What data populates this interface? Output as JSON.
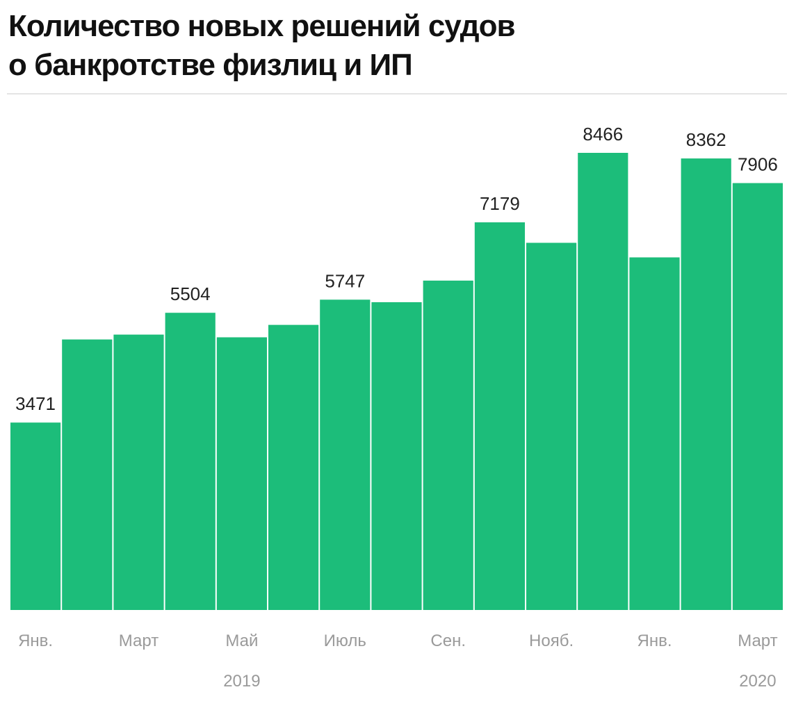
{
  "title_line1": "Количество новых решений судов",
  "title_line2": "о банкротстве физлиц и ИП",
  "chart_data": {
    "type": "bar",
    "title": "Количество новых решений судов о банкротстве физлиц и ИП",
    "categories": [
      "Янв.",
      "",
      "Март",
      "",
      "Май",
      "",
      "Июль",
      "",
      "Сен.",
      "",
      "Нояб.",
      "",
      "Янв.",
      "",
      "Март"
    ],
    "values": [
      3471,
      5010,
      5100,
      5504,
      5050,
      5280,
      5747,
      5700,
      6100,
      7179,
      6800,
      8466,
      6530,
      8362,
      7906
    ],
    "data_labels": [
      "3471",
      "",
      "",
      "5504",
      "",
      "",
      "5747",
      "",
      "",
      "7179",
      "",
      "8466",
      "",
      "8362",
      "7906"
    ],
    "year_labels": [
      {
        "index": 4,
        "text": "2019"
      },
      {
        "index": 14,
        "text": "2020"
      }
    ],
    "ylim": [
      0,
      8466
    ],
    "xlabel": "",
    "ylabel": "",
    "bar_color": "#1cbd7a",
    "grid": false,
    "legend": "none"
  }
}
